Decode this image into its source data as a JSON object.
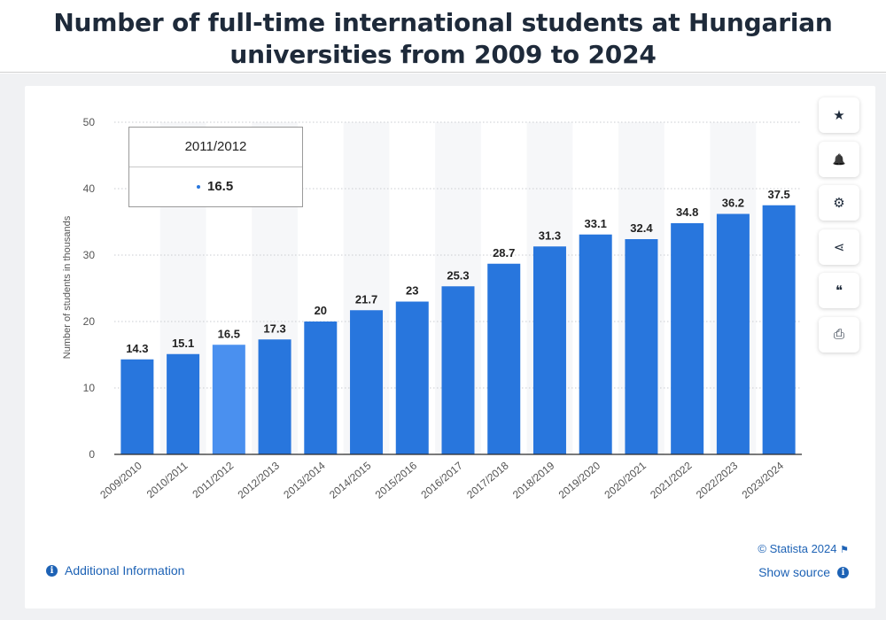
{
  "header": {
    "title_line1": "Number of full-time international students at Hungarian",
    "title_line2": "universities from 2009 to 2024"
  },
  "chart_data": {
    "type": "bar",
    "title": "Number of full-time international students at Hungarian universities from 2009 to 2024",
    "xlabel": "",
    "ylabel": "Number of students in thousands",
    "ylim": [
      0,
      50
    ],
    "yticks": [
      0,
      10,
      20,
      30,
      40,
      50
    ],
    "grid": true,
    "categories": [
      "2009/2010",
      "2010/2011",
      "2011/2012",
      "2012/2013",
      "2013/2014",
      "2014/2015",
      "2015/2016",
      "2016/2017",
      "2017/2018",
      "2018/2019",
      "2019/2020",
      "2020/2021",
      "2021/2022",
      "2022/2023",
      "2023/2024"
    ],
    "values": [
      14.3,
      15.1,
      16.5,
      17.3,
      20,
      21.7,
      23,
      25.3,
      28.7,
      31.3,
      33.1,
      32.4,
      34.8,
      36.2,
      37.5
    ],
    "value_labels": [
      "14.3",
      "15.1",
      "16.5",
      "17.3",
      "20",
      "21.7",
      "23",
      "25.3",
      "28.7",
      "31.3",
      "33.1",
      "32.4",
      "34.8",
      "36.2",
      "37.5"
    ],
    "highlighted_index": 2,
    "bar_color": "#2876dd",
    "highlight_color": "#4a90ef"
  },
  "tooltip": {
    "category": "2011/2012",
    "value": "16.5"
  },
  "sidebar": {
    "buttons": [
      {
        "name": "favorite-button",
        "icon": "star-icon",
        "glyph": "★"
      },
      {
        "name": "notify-button",
        "icon": "bell-icon",
        "glyph": "🔔"
      },
      {
        "name": "settings-button",
        "icon": "gear-icon",
        "glyph": "⚙"
      },
      {
        "name": "share-button",
        "icon": "share-icon",
        "glyph": "⋖"
      },
      {
        "name": "cite-button",
        "icon": "quote-icon",
        "glyph": "❝"
      },
      {
        "name": "print-button",
        "icon": "printer-icon",
        "glyph": "⎙"
      }
    ]
  },
  "footer": {
    "additional_info": "Additional Information",
    "credit": "© Statista 2024",
    "show_source": "Show source"
  },
  "colors": {
    "accent": "#1d62b5",
    "title": "#1e2a3a"
  }
}
